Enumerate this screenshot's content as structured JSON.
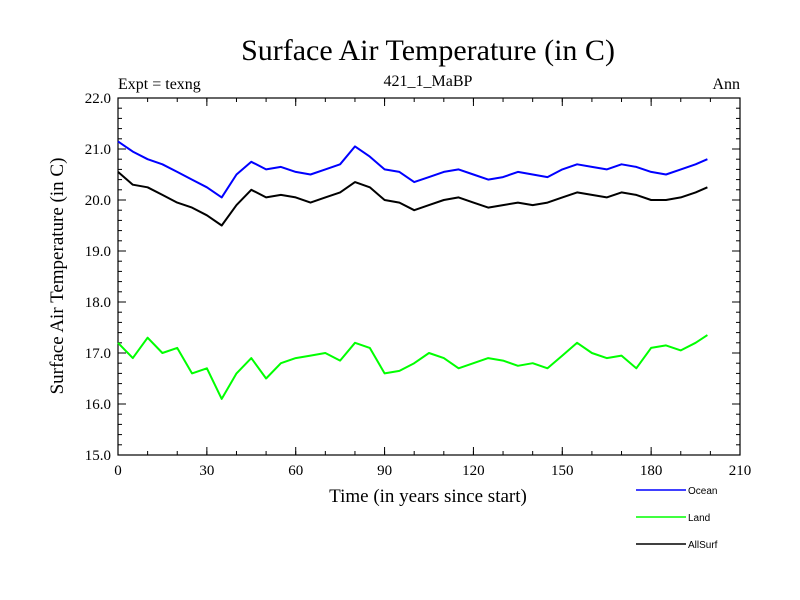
{
  "chart_data": {
    "type": "line",
    "title": "Surface Air Temperature (in C)",
    "subtitle": "421_1_MaBP",
    "left_label": "Expt = texng",
    "right_label": "Ann",
    "xlabel": "Time (in years since start)",
    "ylabel": "Surface Air Temperature (in C)",
    "xlim": [
      0,
      210
    ],
    "ylim": [
      15.0,
      22.0
    ],
    "xticks": [
      0,
      30,
      60,
      90,
      120,
      150,
      180,
      210
    ],
    "xtick_labels": [
      "0",
      "30",
      "60",
      "90",
      "120",
      "150",
      "180",
      "210"
    ],
    "yticks": [
      15.0,
      16.0,
      17.0,
      18.0,
      19.0,
      20.0,
      21.0,
      22.0
    ],
    "ytick_labels": [
      "15.0",
      "16.0",
      "17.0",
      "18.0",
      "19.0",
      "20.0",
      "21.0",
      "22.0"
    ],
    "grid": false,
    "legend_position": "bottom-right",
    "series": [
      {
        "name": "Ocean",
        "color": "#0000ff",
        "x": [
          0,
          5,
          10,
          15,
          20,
          25,
          30,
          35,
          40,
          45,
          50,
          55,
          60,
          65,
          70,
          75,
          80,
          85,
          90,
          95,
          100,
          105,
          110,
          115,
          120,
          125,
          130,
          135,
          140,
          145,
          150,
          155,
          160,
          165,
          170,
          175,
          180,
          185,
          190,
          195,
          199
        ],
        "values": [
          21.15,
          20.95,
          20.8,
          20.7,
          20.55,
          20.4,
          20.25,
          20.05,
          20.5,
          20.75,
          20.6,
          20.65,
          20.55,
          20.5,
          20.6,
          20.7,
          21.05,
          20.85,
          20.6,
          20.55,
          20.35,
          20.45,
          20.55,
          20.6,
          20.5,
          20.4,
          20.45,
          20.55,
          20.5,
          20.45,
          20.6,
          20.7,
          20.65,
          20.6,
          20.7,
          20.65,
          20.55,
          20.5,
          20.6,
          20.7,
          20.8
        ]
      },
      {
        "name": "Land",
        "color": "#00ff00",
        "x": [
          0,
          5,
          10,
          15,
          20,
          25,
          30,
          35,
          40,
          45,
          50,
          55,
          60,
          65,
          70,
          75,
          80,
          85,
          90,
          95,
          100,
          105,
          110,
          115,
          120,
          125,
          130,
          135,
          140,
          145,
          150,
          155,
          160,
          165,
          170,
          175,
          180,
          185,
          190,
          195,
          199
        ],
        "values": [
          17.2,
          16.9,
          17.3,
          17.0,
          17.1,
          16.6,
          16.7,
          16.1,
          16.6,
          16.9,
          16.5,
          16.8,
          16.9,
          16.95,
          17.0,
          16.85,
          17.2,
          17.1,
          16.6,
          16.65,
          16.8,
          17.0,
          16.9,
          16.7,
          16.8,
          16.9,
          16.85,
          16.75,
          16.8,
          16.7,
          16.95,
          17.2,
          17.0,
          16.9,
          16.95,
          16.7,
          17.1,
          17.15,
          17.05,
          17.2,
          17.35
        ]
      },
      {
        "name": "AllSurf",
        "color": "#000000",
        "x": [
          0,
          5,
          10,
          15,
          20,
          25,
          30,
          35,
          40,
          45,
          50,
          55,
          60,
          65,
          70,
          75,
          80,
          85,
          90,
          95,
          100,
          105,
          110,
          115,
          120,
          125,
          130,
          135,
          140,
          145,
          150,
          155,
          160,
          165,
          170,
          175,
          180,
          185,
          190,
          195,
          199
        ],
        "values": [
          20.55,
          20.3,
          20.25,
          20.1,
          19.95,
          19.85,
          19.7,
          19.5,
          19.9,
          20.2,
          20.05,
          20.1,
          20.05,
          19.95,
          20.05,
          20.15,
          20.35,
          20.25,
          20.0,
          19.95,
          19.8,
          19.9,
          20.0,
          20.05,
          19.95,
          19.85,
          19.9,
          19.95,
          19.9,
          19.95,
          20.05,
          20.15,
          20.1,
          20.05,
          20.15,
          20.1,
          20.0,
          20.0,
          20.05,
          20.15,
          20.25
        ]
      }
    ]
  }
}
